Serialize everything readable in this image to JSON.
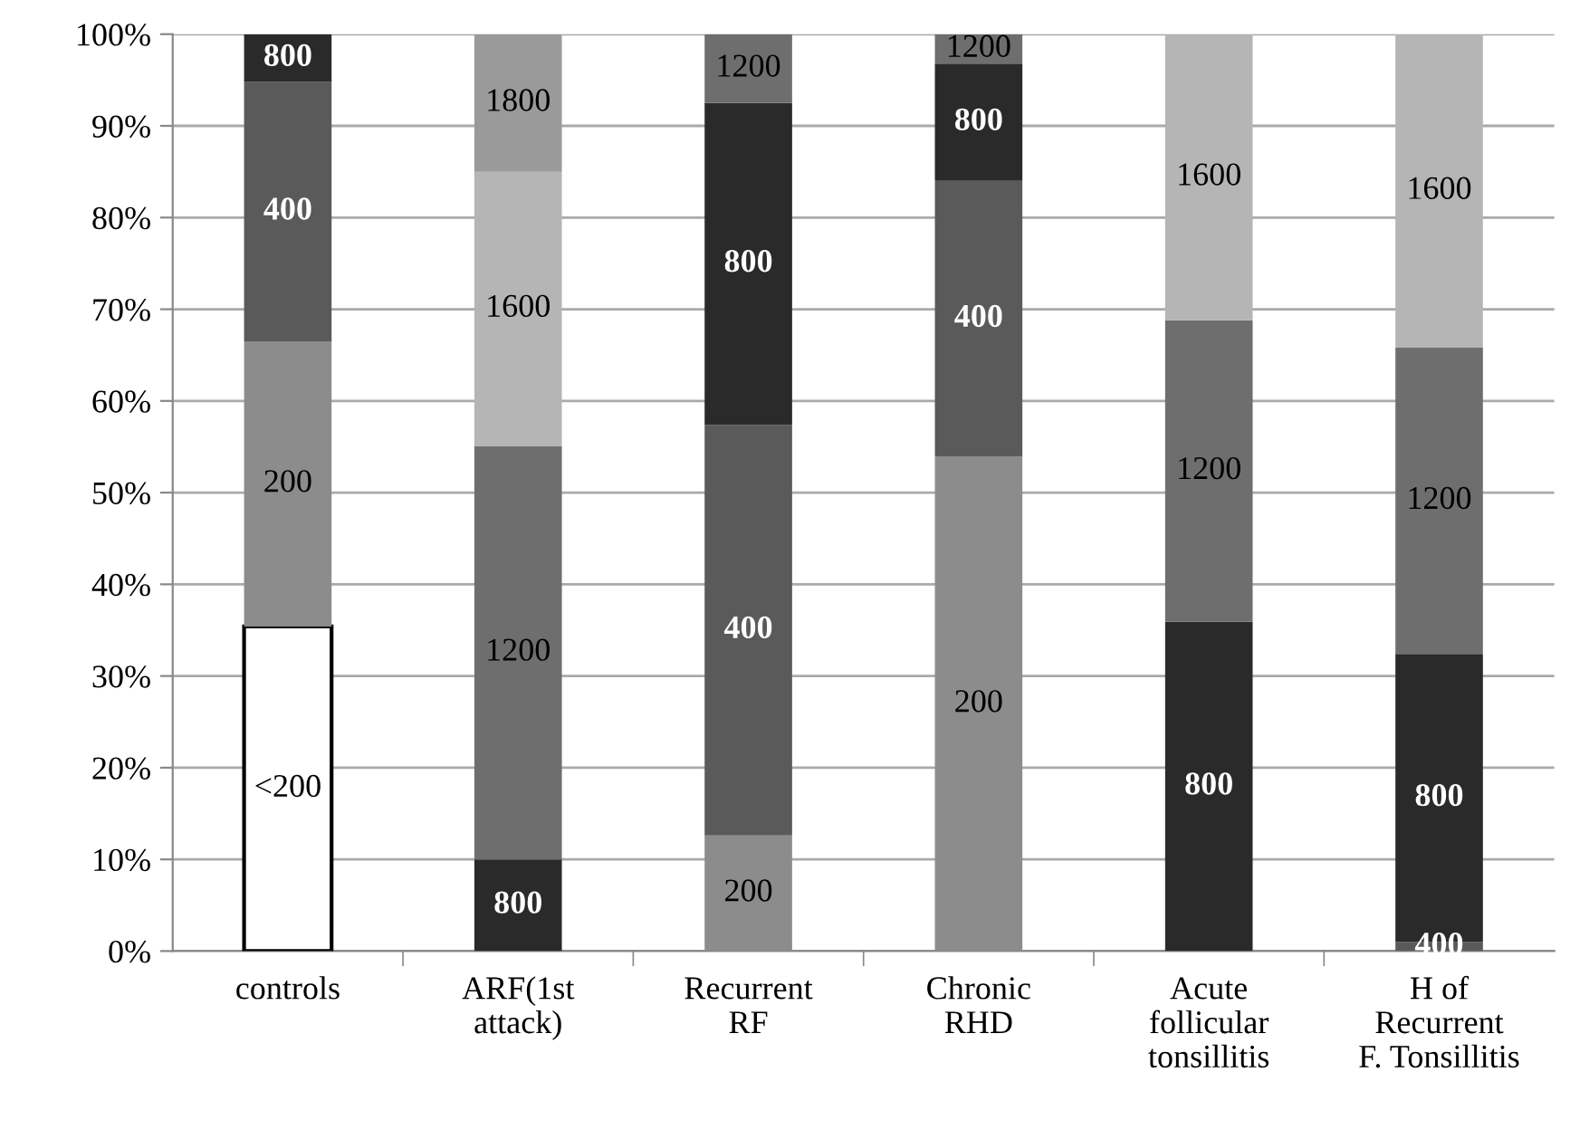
{
  "chart_data": {
    "type": "bar",
    "stacked": true,
    "categories": [
      "controls",
      "ARF(1st\nattack)",
      "Recurrent\nRF",
      "Chronic\nRHD",
      "Acute\nfollicular\ntonsillitis",
      "H of\nRecurrent\nF. Tonsillitis"
    ],
    "series": [
      {
        "name": "<200",
        "color": "#ffffff",
        "values": [
          35.4,
          null,
          null,
          null,
          null,
          null
        ]
      },
      {
        "name": "200",
        "color": "#8c8c8c",
        "values": [
          31.1,
          null,
          12.6,
          53.9,
          null,
          null
        ]
      },
      {
        "name": "400",
        "color": "#5a5a5a",
        "values": [
          28.3,
          null,
          44.8,
          30.1,
          null,
          1
        ]
      },
      {
        "name": "800",
        "color": "#2a2a2a",
        "values": [
          5.2,
          10,
          35.1,
          12.8,
          35.9,
          31.4
        ]
      },
      {
        "name": "1200",
        "color": "#6e6e6e",
        "values": [
          null,
          45.1,
          7.5,
          3.2,
          32.9,
          33.4
        ]
      },
      {
        "name": "1600",
        "color": "#b5b5b5",
        "values": [
          null,
          29.9,
          null,
          null,
          31.2,
          34.2
        ]
      },
      {
        "name": "1800",
        "color": "#9a9a9a",
        "values": [
          null,
          15,
          null,
          null,
          null,
          null
        ]
      }
    ],
    "ylim": [
      0,
      100
    ],
    "yticks": [
      {
        "value": 0,
        "label": "0%"
      },
      {
        "value": 10,
        "label": "10%"
      },
      {
        "value": 20,
        "label": "20%"
      },
      {
        "value": 30,
        "label": "30%"
      },
      {
        "value": 40,
        "label": "40%"
      },
      {
        "value": 50,
        "label": "50%"
      },
      {
        "value": 60,
        "label": "60%"
      },
      {
        "value": 70,
        "label": "70%"
      },
      {
        "value": 80,
        "label": "80%"
      },
      {
        "value": 90,
        "label": "90%"
      },
      {
        "value": 100,
        "label": "100%"
      }
    ],
    "grid": "y",
    "legend": false
  }
}
